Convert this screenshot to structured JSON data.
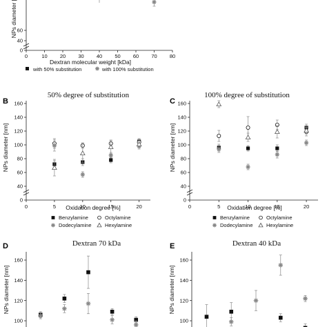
{
  "colors": {
    "axis": "#222222",
    "marker": "#111111",
    "error_bar": "#888888",
    "gray_marker": "#888888"
  },
  "chart_data": [
    {
      "panel": "A",
      "type": "scatter",
      "title": "",
      "xlabel": "Dextran molecular weight [kDa]",
      "ylabel": "NPs diameter [nm]",
      "xlim": [
        0,
        80
      ],
      "xticks": [
        "0",
        "10",
        "20",
        "30",
        "40",
        "50",
        "60",
        "70",
        "80"
      ],
      "yticks": [
        "0",
        "40",
        "60"
      ],
      "y_break": true,
      "legend": [
        "with 50% substitution",
        "with 100% substitution"
      ],
      "series": [
        {
          "name": "with 100% substitution",
          "marker": "asterisk",
          "points": [
            {
              "x": 70,
              "y": 96,
              "err": 5
            }
          ]
        }
      ],
      "visible_isolated_error_bars_at_x": [
        40
      ]
    },
    {
      "panel": "B",
      "type": "scatter",
      "title": "50% degree of substitution",
      "xlabel": "Oxidation degree [%]",
      "ylabel": "NPs diameter [nm]",
      "xlim": [
        0,
        22
      ],
      "ylim": [
        40,
        160
      ],
      "xticks": [
        "0",
        "5",
        "10",
        "15",
        "20"
      ],
      "yticks": [
        "0",
        "40",
        "60",
        "80",
        "100",
        "120",
        "140",
        "160"
      ],
      "y_break": true,
      "legend": [
        "Benzylamine",
        "Octylamine",
        "Dodecylamine",
        "Hexylamine"
      ],
      "series": [
        {
          "name": "Benzylamine",
          "marker": "square",
          "points": [
            {
              "x": 5,
              "y": 72,
              "err": 5
            },
            {
              "x": 10,
              "y": 75,
              "err": 5
            },
            {
              "x": 15,
              "y": 78,
              "err": 4
            },
            {
              "x": 20,
              "y": 105,
              "err": 4
            }
          ]
        },
        {
          "name": "Octylamine",
          "marker": "circle",
          "points": [
            {
              "x": 5,
              "y": 102,
              "err": 7
            },
            {
              "x": 10,
              "y": 99,
              "err": 4
            },
            {
              "x": 15,
              "y": 102,
              "err": 4
            },
            {
              "x": 20,
              "y": 104,
              "err": 5
            }
          ]
        },
        {
          "name": "Dodecylamine",
          "marker": "asterisk",
          "points": [
            {
              "x": 5,
              "y": 99,
              "err": 8
            },
            {
              "x": 10,
              "y": 57,
              "err": 4
            },
            {
              "x": 15,
              "y": 85,
              "err": 4
            },
            {
              "x": 20,
              "y": 98,
              "err": 4
            }
          ]
        },
        {
          "name": "Hexylamine",
          "marker": "triangle",
          "points": [
            {
              "x": 5,
              "y": 67,
              "err": 12
            },
            {
              "x": 10,
              "y": 88,
              "err": 14
            },
            {
              "x": 15,
              "y": 97,
              "err": 10
            },
            {
              "x": 20,
              "y": 101,
              "err": 5
            }
          ]
        }
      ]
    },
    {
      "panel": "C",
      "type": "scatter",
      "title": "100% degree of substitution",
      "xlabel": "Oxidation degree [%]",
      "ylabel": "NPs diameter [nm]",
      "xlim": [
        0,
        22
      ],
      "ylim": [
        40,
        160
      ],
      "xticks": [
        "0",
        "5",
        "10",
        "15",
        "20"
      ],
      "yticks": [
        "0",
        "40",
        "60",
        "80",
        "100",
        "120",
        "140",
        "160"
      ],
      "y_break": true,
      "legend": [
        "Benzylamine",
        "Octylamine",
        "Dodecylamine",
        "Hexylamine"
      ],
      "series": [
        {
          "name": "Benzylamine",
          "marker": "square",
          "points": [
            {
              "x": 5,
              "y": 96,
              "err": 5
            },
            {
              "x": 10,
              "y": 95,
              "err": 4
            },
            {
              "x": 15,
              "y": 95,
              "err": 5
            },
            {
              "x": 20,
              "y": 125,
              "err": 5
            }
          ]
        },
        {
          "name": "Octylamine",
          "marker": "circle",
          "points": [
            {
              "x": 5,
              "y": 113,
              "err": 8
            },
            {
              "x": 10,
              "y": 125,
              "err": 16
            },
            {
              "x": 15,
              "y": 129,
              "err": 7
            },
            {
              "x": 20,
              "y": 119,
              "err": 6
            }
          ]
        },
        {
          "name": "Dodecylamine",
          "marker": "asterisk",
          "points": [
            {
              "x": 5,
              "y": 94,
              "err": 5
            },
            {
              "x": 10,
              "y": 68,
              "err": 4
            },
            {
              "x": 15,
              "y": 86,
              "err": 5
            },
            {
              "x": 20,
              "y": 103,
              "err": 4
            }
          ]
        },
        {
          "name": "Hexylamine",
          "marker": "triangle",
          "points": [
            {
              "x": 5,
              "y": 159,
              "err": 5
            },
            {
              "x": 10,
              "y": 111,
              "err": 6
            },
            {
              "x": 15,
              "y": 119,
              "err": 9
            },
            {
              "x": 20,
              "y": 121,
              "err": 5
            }
          ]
        }
      ]
    },
    {
      "panel": "D",
      "type": "scatter",
      "title": "Dextran 70 kDa",
      "xlabel": "",
      "ylabel": "NPs diameter [nm]",
      "ylim": [
        90,
        170
      ],
      "yticks": [
        "100",
        "120",
        "140",
        "160"
      ],
      "series": [
        {
          "name": "",
          "marker": "square",
          "points": [
            {
              "x": 1,
              "y": 106,
              "err": 3
            },
            {
              "x": 2,
              "y": 122,
              "err": 4
            },
            {
              "x": 3,
              "y": 148,
              "err": 16
            },
            {
              "x": 4,
              "y": 109,
              "err": 3
            },
            {
              "x": 5,
              "y": 101,
              "err": 3
            }
          ]
        },
        {
          "name": "",
          "marker": "asterisk",
          "points": [
            {
              "x": 1,
              "y": 105,
              "err": 3
            },
            {
              "x": 2,
              "y": 112,
              "err": 4
            },
            {
              "x": 3,
              "y": 117,
              "err": 10
            },
            {
              "x": 4,
              "y": 101,
              "err": 4
            },
            {
              "x": 5,
              "y": 96,
              "err": 4
            }
          ]
        }
      ]
    },
    {
      "panel": "E",
      "type": "scatter",
      "title": "Dextran 40 kDa",
      "xlabel": "",
      "ylabel": "NPs diameter [nm]",
      "ylim": [
        90,
        170
      ],
      "yticks": [
        "100",
        "120",
        "140",
        "160"
      ],
      "series": [
        {
          "name": "",
          "marker": "square",
          "points": [
            {
              "x": 1,
              "y": 104,
              "err": 12
            },
            {
              "x": 2,
              "y": 109,
              "err": 9
            },
            {
              "x": 4,
              "y": 103,
              "err": 4
            },
            {
              "x": 5,
              "y": 93,
              "err": 4
            }
          ]
        },
        {
          "name": "",
          "marker": "asterisk",
          "points": [
            {
              "x": 2,
              "y": 99,
              "err": 4
            },
            {
              "x": 3,
              "y": 120,
              "err": 10
            },
            {
              "x": 4,
              "y": 155,
              "err": 10
            },
            {
              "x": 5,
              "y": 122,
              "err": 3
            }
          ]
        }
      ]
    }
  ]
}
